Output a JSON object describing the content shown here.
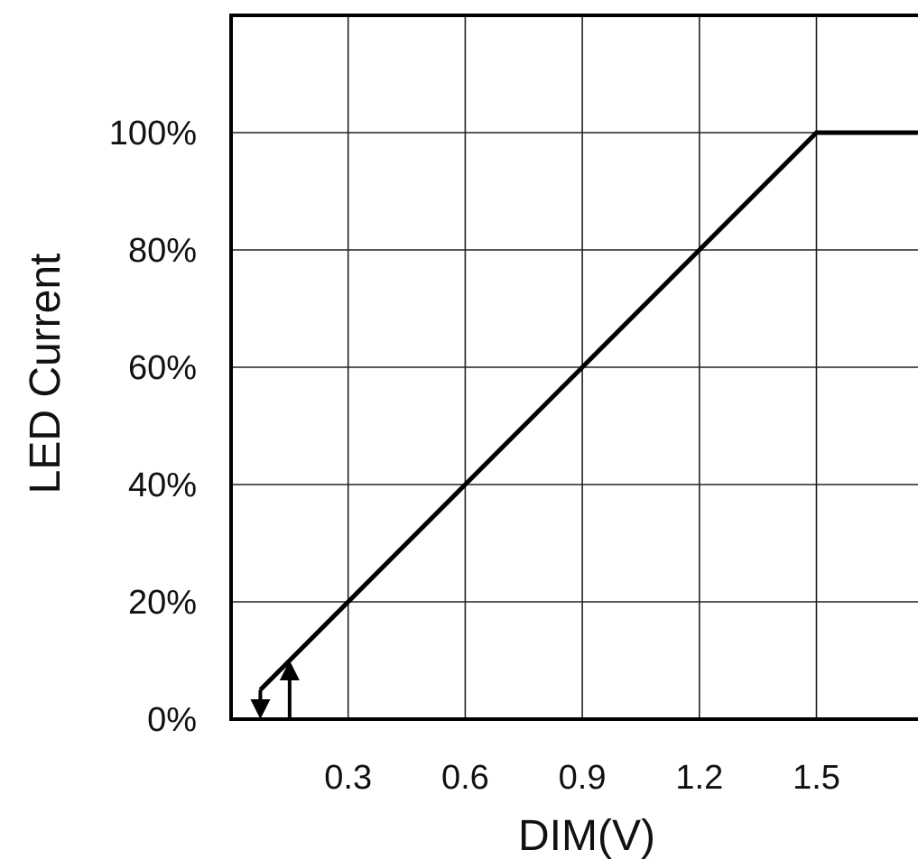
{
  "chart_data": {
    "type": "line",
    "title": "",
    "xlabel": "DIM(V)",
    "ylabel": "LED Current",
    "xlim": [
      0,
      1.76
    ],
    "ylim": [
      0,
      1.2
    ],
    "x_ticks": [
      0.3,
      0.6,
      0.9,
      1.2,
      1.5
    ],
    "x_tick_labels": [
      "0.3",
      "0.6",
      "0.9",
      "1.2",
      "1.5"
    ],
    "y_ticks": [
      0,
      0.2,
      0.4,
      0.6,
      0.8,
      1.0
    ],
    "y_tick_labels": [
      "0%",
      "20%",
      "40%",
      "60%",
      "80%",
      "100%"
    ],
    "grid": true,
    "series": [
      {
        "x": [
          0.075,
          0.15,
          0.3,
          0.6,
          0.9,
          1.2,
          1.5,
          1.76
        ],
        "y": [
          0.05,
          0.1,
          0.2,
          0.4,
          0.6,
          0.8,
          1.0,
          1.0
        ]
      }
    ],
    "arrows": [
      {
        "direction": "down",
        "x": 0.075,
        "y_from": 0.05,
        "y_to": 0.0
      },
      {
        "direction": "up",
        "x": 0.15,
        "y_from": 0.0,
        "y_to": 0.1
      }
    ]
  }
}
